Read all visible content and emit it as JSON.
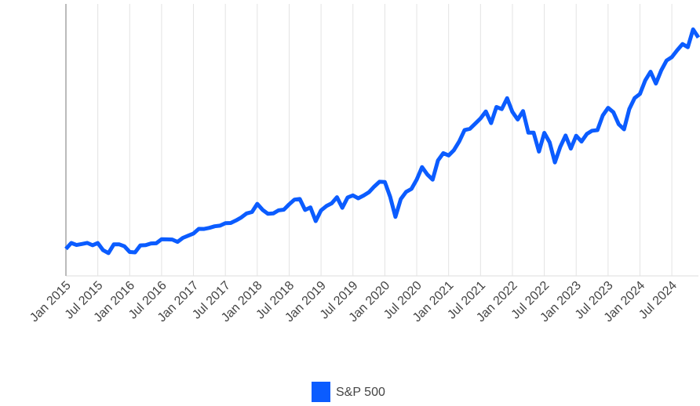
{
  "chart_data": {
    "type": "line",
    "categories": [
      "Jan 2015",
      null,
      null,
      null,
      null,
      null,
      "Jul 2015",
      null,
      null,
      null,
      null,
      null,
      "Jan 2016",
      null,
      null,
      null,
      null,
      null,
      "Jul 2016",
      null,
      null,
      null,
      null,
      null,
      "Jan 2017",
      null,
      null,
      null,
      null,
      null,
      "Jul 2017",
      null,
      null,
      null,
      null,
      null,
      "Jan 2018",
      null,
      null,
      null,
      null,
      null,
      "Jul 2018",
      null,
      null,
      null,
      null,
      null,
      "Jan 2019",
      null,
      null,
      null,
      null,
      null,
      "Jul 2019",
      null,
      null,
      null,
      null,
      null,
      "Jan 2020",
      null,
      null,
      null,
      null,
      null,
      "Jul 2020",
      null,
      null,
      null,
      null,
      null,
      "Jan 2021",
      null,
      null,
      null,
      null,
      null,
      "Jul 2021",
      null,
      null,
      null,
      null,
      null,
      "Jan 2022",
      null,
      null,
      null,
      null,
      null,
      "Jul 2022",
      null,
      null,
      null,
      null,
      null,
      "Jan 2023",
      null,
      null,
      null,
      null,
      null,
      "Jul 2023",
      null,
      null,
      null,
      null,
      null,
      "Jan 2024",
      null,
      null,
      null,
      null,
      null,
      "Jul 2024",
      null,
      null,
      null,
      null,
      null
    ],
    "series": [
      {
        "name": "S&P 500",
        "color": "#0b5cff",
        "values": [
          1995,
          2105,
          2068,
          2086,
          2107,
          2063,
          2104,
          1972,
          1920,
          2079,
          2080,
          2044,
          1940,
          1932,
          2060,
          2065,
          2097,
          2099,
          2174,
          2171,
          2168,
          2126,
          2199,
          2239,
          2279,
          2364,
          2363,
          2384,
          2412,
          2423,
          2470,
          2472,
          2519,
          2575,
          2648,
          2674,
          2824,
          2714,
          2641,
          2648,
          2705,
          2718,
          2816,
          2902,
          2914,
          2712,
          2760,
          2507,
          2704,
          2784,
          2834,
          2946,
          2752,
          2942,
          2980,
          2926,
          2977,
          3038,
          3141,
          3231,
          3226,
          2954,
          2585,
          2912,
          3044,
          3100,
          3271,
          3500,
          3363,
          3270,
          3622,
          3756,
          3714,
          3811,
          3973,
          4181,
          4204,
          4298,
          4395,
          4523,
          4308,
          4605,
          4567,
          4766,
          4516,
          4374,
          4530,
          4132,
          4132,
          3785,
          4130,
          3955,
          3586,
          3872,
          4080,
          3840,
          4077,
          3970,
          4109,
          4169,
          4180,
          4450,
          4589,
          4508,
          4288,
          4194,
          4568,
          4770,
          4846,
          5096,
          5254,
          5036,
          5278,
          5460,
          5522,
          5648,
          5762,
          5705,
          6032,
          5882
        ]
      }
    ],
    "ylim": [
      1500,
      6500
    ],
    "grid": true
  }
}
